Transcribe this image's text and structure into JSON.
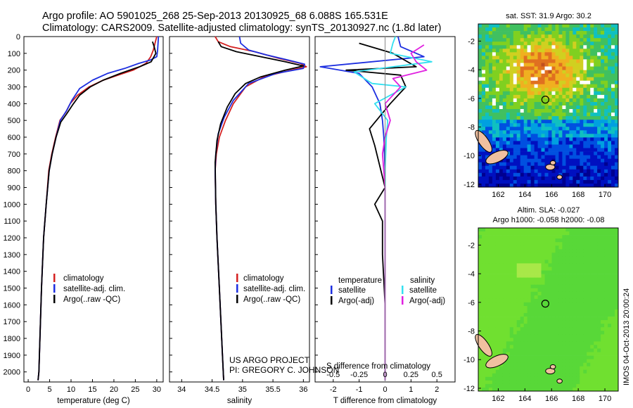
{
  "header": {
    "line1": "Argo profile: AO 5901025_268 25-Sep-2013 20130925_68 6.088S 165.531E",
    "line2": "Climatology: CARS2009. Satellite-adjusted climatology: synTS_20130927.nc (1.8d later)"
  },
  "credits": {
    "project": "US ARGO PROJECT",
    "pi": "PI: GREGORY C. JOHNSON",
    "stamp": "IMOS 04-Oct-2013 20:00:24"
  },
  "colors": {
    "climatology": "#d42020",
    "satellite": "#1c2ee0",
    "argo": "#000000",
    "salinity_satellite": "#33e0f0",
    "salinity_argo": "#e020e0"
  },
  "chart_data": [
    {
      "type": "line",
      "id": "temperature",
      "xlabel": "temperature (deg C)",
      "xlim": [
        -1,
        31.5
      ],
      "xticks": [
        0,
        5,
        10,
        15,
        20,
        25,
        30
      ],
      "ylim": [
        2060,
        0
      ],
      "yticks": [
        0,
        100,
        200,
        300,
        400,
        500,
        600,
        700,
        800,
        900,
        1000,
        1100,
        1200,
        1300,
        1400,
        1500,
        1600,
        1700,
        1800,
        1900,
        2000
      ],
      "legend": [
        "climatology",
        "satellite-adj. clim.",
        "Argo(..raw -QC)"
      ],
      "series": [
        {
          "name": "climatology",
          "color": "#d42020",
          "x": [
            30.0,
            29.6,
            29.2,
            28.6,
            27.5,
            24.5,
            21.0,
            17.5,
            14.2,
            11.5,
            9.8,
            8.8,
            7.4,
            6.4,
            5.5,
            4.8,
            4.2,
            3.6,
            3.1,
            2.5,
            2.3
          ],
          "y": [
            0,
            40,
            80,
            120,
            160,
            200,
            230,
            260,
            300,
            350,
            400,
            450,
            500,
            600,
            700,
            800,
            1000,
            1200,
            1500,
            2000,
            2050
          ]
        },
        {
          "name": "satellite-adj. clim.",
          "color": "#1c2ee0",
          "x": [
            30.4,
            30.3,
            30.2,
            30.0,
            28.5,
            25.8,
            22.5,
            18.5,
            15.0,
            12.0,
            10.2,
            9.0,
            7.5,
            6.5,
            5.6,
            4.9,
            4.2,
            3.6,
            3.1,
            2.5,
            2.3
          ],
          "y": [
            0,
            40,
            80,
            120,
            140,
            160,
            190,
            220,
            260,
            310,
            380,
            440,
            500,
            600,
            700,
            800,
            1000,
            1200,
            1500,
            2000,
            2050
          ]
        },
        {
          "name": "Argo(..raw -QC)",
          "color": "#000000",
          "x": [
            29.0,
            29.4,
            29.8,
            28.7,
            26.0,
            21.5,
            17.5,
            14.5,
            12.0,
            10.3,
            9.0,
            7.6,
            6.5,
            5.6,
            4.9,
            4.2,
            3.6,
            3.1,
            2.5,
            2.3
          ],
          "y": [
            30,
            60,
            100,
            150,
            180,
            220,
            260,
            300,
            350,
            410,
            460,
            510,
            600,
            700,
            800,
            1000,
            1200,
            1500,
            2000,
            2050
          ]
        }
      ]
    },
    {
      "type": "line",
      "id": "salinity",
      "xlabel": "salinity",
      "xlim": [
        33.8,
        36.1
      ],
      "xticks": [
        34,
        34.5,
        35,
        35.5,
        36
      ],
      "ylim": [
        2060,
        0
      ],
      "legend": [
        "climatology",
        "satellite-adj. clim.",
        "Argo(..raw -QC)"
      ],
      "series": [
        {
          "name": "climatology",
          "color": "#d42020",
          "x": [
            34.55,
            34.6,
            34.8,
            35.2,
            35.6,
            35.95,
            36.05,
            35.8,
            35.35,
            35.05,
            34.85,
            34.72,
            34.62,
            34.57,
            34.55,
            34.56,
            34.58,
            34.62,
            34.67,
            34.69
          ],
          "y": [
            0,
            30,
            60,
            90,
            130,
            160,
            180,
            200,
            240,
            300,
            400,
            500,
            600,
            700,
            800,
            1000,
            1200,
            1500,
            1900,
            2050
          ]
        },
        {
          "name": "satellite-adj. clim.",
          "color": "#1c2ee0",
          "x": [
            34.95,
            34.97,
            35.1,
            35.4,
            35.75,
            36.02,
            36.0,
            35.55,
            35.1,
            34.85,
            34.7,
            34.6,
            34.56,
            34.55,
            34.56,
            34.58,
            34.62,
            34.67,
            34.69
          ],
          "y": [
            0,
            40,
            80,
            110,
            140,
            165,
            190,
            220,
            280,
            380,
            480,
            580,
            700,
            800,
            1000,
            1200,
            1500,
            1900,
            2050
          ]
        },
        {
          "name": "Argo(..raw -QC)",
          "color": "#000000",
          "x": [
            34.6,
            34.65,
            34.9,
            35.3,
            35.7,
            36.0,
            35.7,
            35.3,
            35.05,
            34.88,
            34.75,
            34.64,
            34.58,
            34.55,
            34.56,
            34.58,
            34.62,
            34.67,
            34.69
          ],
          "y": [
            30,
            60,
            90,
            120,
            150,
            175,
            200,
            240,
            280,
            340,
            420,
            520,
            620,
            750,
            1000,
            1200,
            1500,
            1900,
            2050
          ]
        }
      ]
    },
    {
      "type": "line",
      "id": "difference",
      "xlabel": "T difference from climatology",
      "xlabel_top": "S difference from climatology",
      "xlim": [
        -2.7,
        2.7
      ],
      "xticks": [
        -2,
        -1,
        0,
        1,
        2
      ],
      "top_ticks": [
        "-0.5",
        "-0.25",
        "0",
        "0.25",
        "0.5"
      ],
      "top_tick_x": [
        -2,
        -1,
        0,
        1,
        2
      ],
      "ylim": [
        2060,
        0
      ],
      "legend_titles": [
        "temperature",
        "salinity"
      ],
      "legend": [
        "satellite",
        "Argo(-adj)",
        "satellite",
        "Argo(-adj)"
      ],
      "series": [
        {
          "name": "temperature satellite",
          "color": "#1c2ee0",
          "x": [
            0.5,
            0.6,
            1.5,
            -2.5,
            -1.0,
            -0.5,
            -0.2,
            -0.1,
            -0.05,
            0.0,
            0.0,
            0.0,
            0.0,
            0.0
          ],
          "y": [
            0,
            60,
            120,
            180,
            220,
            300,
            400,
            500,
            600,
            800,
            1000,
            1400,
            1800,
            2050
          ]
        },
        {
          "name": "temperature Argo(-adj)",
          "color": "#000000",
          "x": [
            -1.0,
            0.3,
            1.2,
            -1.5,
            0.6,
            0.8,
            0.2,
            -0.6,
            -0.4,
            0.0,
            -0.4,
            -0.1,
            -0.1,
            0.0,
            0.0
          ],
          "y": [
            40,
            100,
            180,
            200,
            230,
            300,
            400,
            550,
            650,
            900,
            1000,
            1100,
            1300,
            1600,
            2050
          ]
        },
        {
          "name": "salinity satellite",
          "color": "#33e0f0",
          "x": [
            0.4,
            0.3,
            0.2,
            1.8,
            -1.2,
            -0.5,
            0.8,
            -0.4,
            0.1,
            0.05,
            0.0,
            0.0,
            0.0,
            0.0
          ],
          "y": [
            0,
            40,
            100,
            150,
            210,
            280,
            300,
            400,
            500,
            600,
            800,
            1200,
            1600,
            2050
          ]
        },
        {
          "name": "salinity Argo(-adj)",
          "color": "#e020e0",
          "x": [
            1.5,
            1.0,
            1.2,
            1.6,
            0.3,
            0.6,
            0.0,
            0.2,
            0.0,
            -0.1,
            0.0,
            0.0,
            0.0
          ],
          "y": [
            50,
            100,
            150,
            200,
            250,
            300,
            400,
            500,
            600,
            700,
            900,
            1300,
            2050
          ]
        }
      ]
    },
    {
      "type": "heatmap",
      "id": "sst-map",
      "title": "sat. SST: 31.9  Argo: 30.2",
      "xticks": [
        162,
        164,
        166,
        168,
        170
      ],
      "yticks": [
        -2,
        -4,
        -6,
        -8,
        -10,
        -12
      ],
      "xlim": [
        160.5,
        171
      ],
      "ylim": [
        -12.2,
        -0.8
      ],
      "argo_position": [
        165.531,
        -6.088
      ]
    },
    {
      "type": "heatmap",
      "id": "sla-map",
      "title_line1": "Altim. SLA: -0.027",
      "title_line2": "Argo h1000: -0.058 h2000: -0.08",
      "xticks": [
        162,
        164,
        166,
        168,
        170
      ],
      "yticks": [
        -2,
        -4,
        -6,
        -8,
        -10,
        -12
      ],
      "xlim": [
        160.5,
        171
      ],
      "ylim": [
        -12.2,
        -0.8
      ],
      "argo_position": [
        165.531,
        -6.088
      ]
    }
  ]
}
